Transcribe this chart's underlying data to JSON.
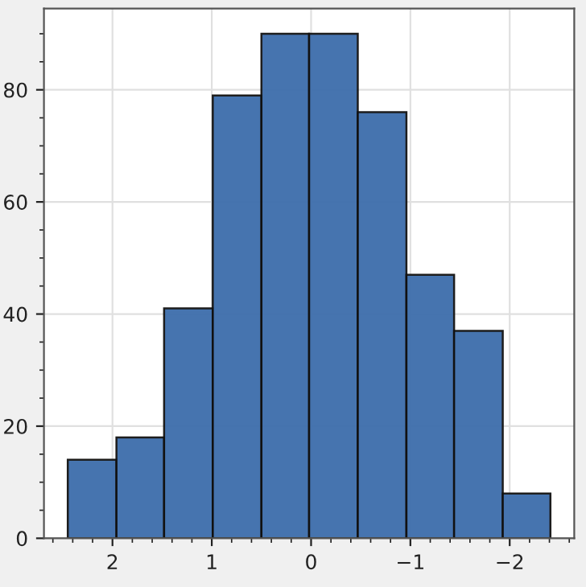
{
  "chart_data": {
    "type": "histogram",
    "bins": [
      2.45,
      1.96,
      1.48,
      0.99,
      0.5,
      0.02,
      -0.47,
      -0.96,
      -1.44,
      -1.93,
      -2.41
    ],
    "values": [
      14,
      18,
      41,
      79,
      90,
      90,
      76,
      47,
      37,
      8
    ],
    "color": "#3d6dab",
    "xlim": [
      2.69,
      -2.65
    ],
    "xticks": [
      2,
      1,
      0,
      {
        "value": -1,
        "label": "−1"
      },
      {
        "value": -2,
        "label": "−2"
      }
    ],
    "ylim": [
      0,
      94.5
    ],
    "yticks": [
      0,
      20,
      40,
      60,
      80
    ],
    "grid": true
  }
}
